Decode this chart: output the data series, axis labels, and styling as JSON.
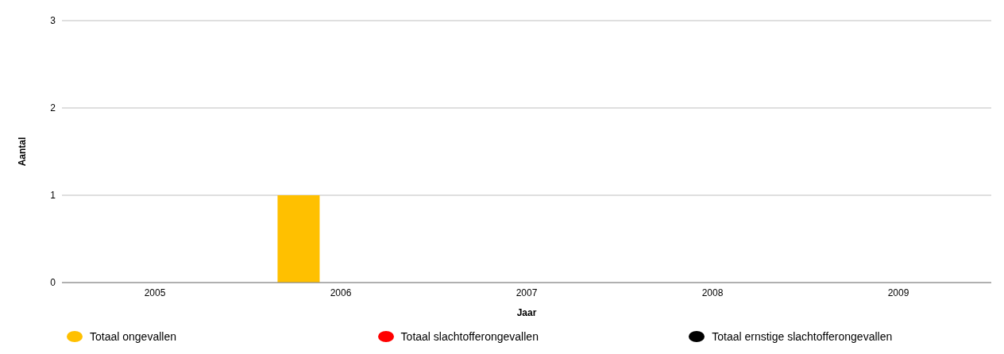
{
  "chart_data": {
    "type": "bar",
    "xlabel": "Jaar",
    "ylabel": "Aantal",
    "categories": [
      "2005",
      "2006",
      "2007",
      "2008",
      "2009"
    ],
    "series": [
      {
        "name": "Totaal ongevallen",
        "color": "#ffc000",
        "values": [
          0,
          1,
          0,
          0,
          0
        ]
      },
      {
        "name": "Totaal slachtofferongevallen",
        "color": "#ff0000",
        "values": [
          0,
          0,
          0,
          0,
          0
        ]
      },
      {
        "name": "Totaal ernstige slachtofferongevallen",
        "color": "#000000",
        "values": [
          0,
          0,
          0,
          0,
          0
        ]
      }
    ],
    "ylim": [
      0,
      3
    ],
    "yticks": [
      0,
      1,
      2,
      3
    ],
    "grid": "y",
    "legend": "bottom"
  }
}
